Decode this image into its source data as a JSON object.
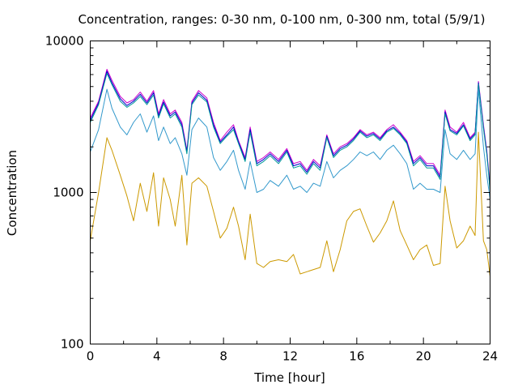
{
  "chart_data": {
    "type": "line",
    "title": "Concentration, ranges: 0-30 nm, 0-100 nm, 0-300 nm, total (5/9/1)",
    "xlabel": "Time [hour]",
    "ylabel": "Concentration",
    "xlim": [
      0,
      24
    ],
    "ylim": [
      100,
      10000
    ],
    "yscale": "log",
    "grid": false,
    "legend": "none",
    "x_ticks": [
      0,
      4,
      8,
      12,
      16,
      20,
      24
    ],
    "x_tick_labels": [
      "0",
      "4",
      "8",
      "12",
      "16",
      "20",
      "24"
    ],
    "y_ticks": [
      100,
      1000,
      10000
    ],
    "y_tick_labels": [
      "100",
      "1000",
      "10000"
    ],
    "x": [
      0,
      0.5,
      1,
      1.3,
      1.8,
      2.2,
      2.6,
      3,
      3.4,
      3.8,
      4.1,
      4.4,
      4.8,
      5.1,
      5.5,
      5.8,
      6.1,
      6.5,
      7,
      7.4,
      7.8,
      8.2,
      8.6,
      8.9,
      9.3,
      9.6,
      10,
      10.4,
      10.8,
      11.3,
      11.8,
      12.2,
      12.6,
      13,
      13.4,
      13.8,
      14.2,
      14.6,
      15,
      15.4,
      15.8,
      16.2,
      16.6,
      17,
      17.4,
      17.8,
      18.2,
      18.6,
      19,
      19.4,
      19.8,
      20.2,
      20.6,
      21,
      21.3,
      21.6,
      22,
      22.4,
      22.8,
      23.1,
      23.3,
      23.6,
      23.8,
      24
    ],
    "series": [
      {
        "color": "#cc00cc",
        "values": [
          3100,
          4000,
          6500,
          5500,
          4300,
          3900,
          4100,
          4600,
          4000,
          4700,
          3300,
          4100,
          3300,
          3500,
          2900,
          1900,
          4000,
          4700,
          4200,
          2900,
          2200,
          2500,
          2800,
          2200,
          1700,
          2700,
          1600,
          1700,
          1850,
          1650,
          1950,
          1550,
          1600,
          1400,
          1650,
          1500,
          2400,
          1800,
          2000,
          2100,
          2300,
          2600,
          2400,
          2500,
          2300,
          2600,
          2800,
          2500,
          2200,
          1600,
          1750,
          1550,
          1550,
          1300,
          3500,
          2700,
          2500,
          2900,
          2300,
          2500,
          5400,
          2800,
          1900,
          1100
        ]
      },
      {
        "color": "#0000cc",
        "values": [
          3000,
          3900,
          6300,
          5300,
          4150,
          3750,
          4000,
          4450,
          3900,
          4550,
          3200,
          3950,
          3200,
          3400,
          2800,
          1850,
          3900,
          4550,
          4050,
          2800,
          2150,
          2400,
          2700,
          2150,
          1650,
          2600,
          1550,
          1650,
          1800,
          1600,
          1900,
          1500,
          1550,
          1360,
          1600,
          1450,
          2350,
          1750,
          1950,
          2050,
          2250,
          2550,
          2350,
          2450,
          2250,
          2550,
          2700,
          2450,
          2150,
          1550,
          1700,
          1500,
          1500,
          1260,
          3400,
          2600,
          2450,
          2800,
          2250,
          2450,
          5300,
          2700,
          1850,
          1050
        ]
      },
      {
        "color": "#009999",
        "values": [
          2900,
          3800,
          6100,
          5150,
          4000,
          3650,
          3900,
          4300,
          3800,
          4400,
          3100,
          3850,
          3100,
          3300,
          2700,
          1800,
          3800,
          4400,
          3950,
          2700,
          2100,
          2350,
          2600,
          2100,
          1600,
          2500,
          1500,
          1600,
          1750,
          1550,
          1850,
          1450,
          1500,
          1320,
          1550,
          1400,
          2300,
          1700,
          1900,
          2000,
          2200,
          2500,
          2300,
          2400,
          2200,
          2500,
          2650,
          2400,
          2100,
          1500,
          1650,
          1450,
          1450,
          1220,
          3300,
          2550,
          2400,
          2750,
          2200,
          2400,
          5200,
          2650,
          1800,
          1020
        ]
      },
      {
        "color": "#3399cc",
        "values": [
          1850,
          2600,
          4800,
          3600,
          2700,
          2400,
          2900,
          3300,
          2500,
          3200,
          2200,
          2700,
          2100,
          2300,
          1800,
          1300,
          2600,
          3100,
          2700,
          1700,
          1400,
          1600,
          1900,
          1400,
          1050,
          1600,
          1000,
          1050,
          1200,
          1100,
          1300,
          1050,
          1100,
          1000,
          1150,
          1100,
          1600,
          1250,
          1400,
          1500,
          1650,
          1850,
          1750,
          1850,
          1650,
          1900,
          2050,
          1800,
          1550,
          1050,
          1150,
          1050,
          1050,
          1000,
          2600,
          1800,
          1650,
          1900,
          1650,
          1800,
          4800,
          2000,
          1300,
          900
        ]
      },
      {
        "color": "#cc9900",
        "values": [
          480,
          1000,
          2300,
          1900,
          1300,
          950,
          650,
          1150,
          750,
          1350,
          600,
          1250,
          900,
          600,
          1300,
          450,
          1150,
          1250,
          1100,
          750,
          500,
          580,
          800,
          600,
          360,
          720,
          340,
          320,
          350,
          360,
          350,
          390,
          290,
          300,
          310,
          320,
          480,
          300,
          420,
          650,
          750,
          780,
          600,
          470,
          540,
          650,
          880,
          560,
          450,
          360,
          420,
          450,
          330,
          340,
          1100,
          650,
          430,
          480,
          600,
          520,
          2500,
          480,
          420,
          280
        ]
      }
    ]
  }
}
